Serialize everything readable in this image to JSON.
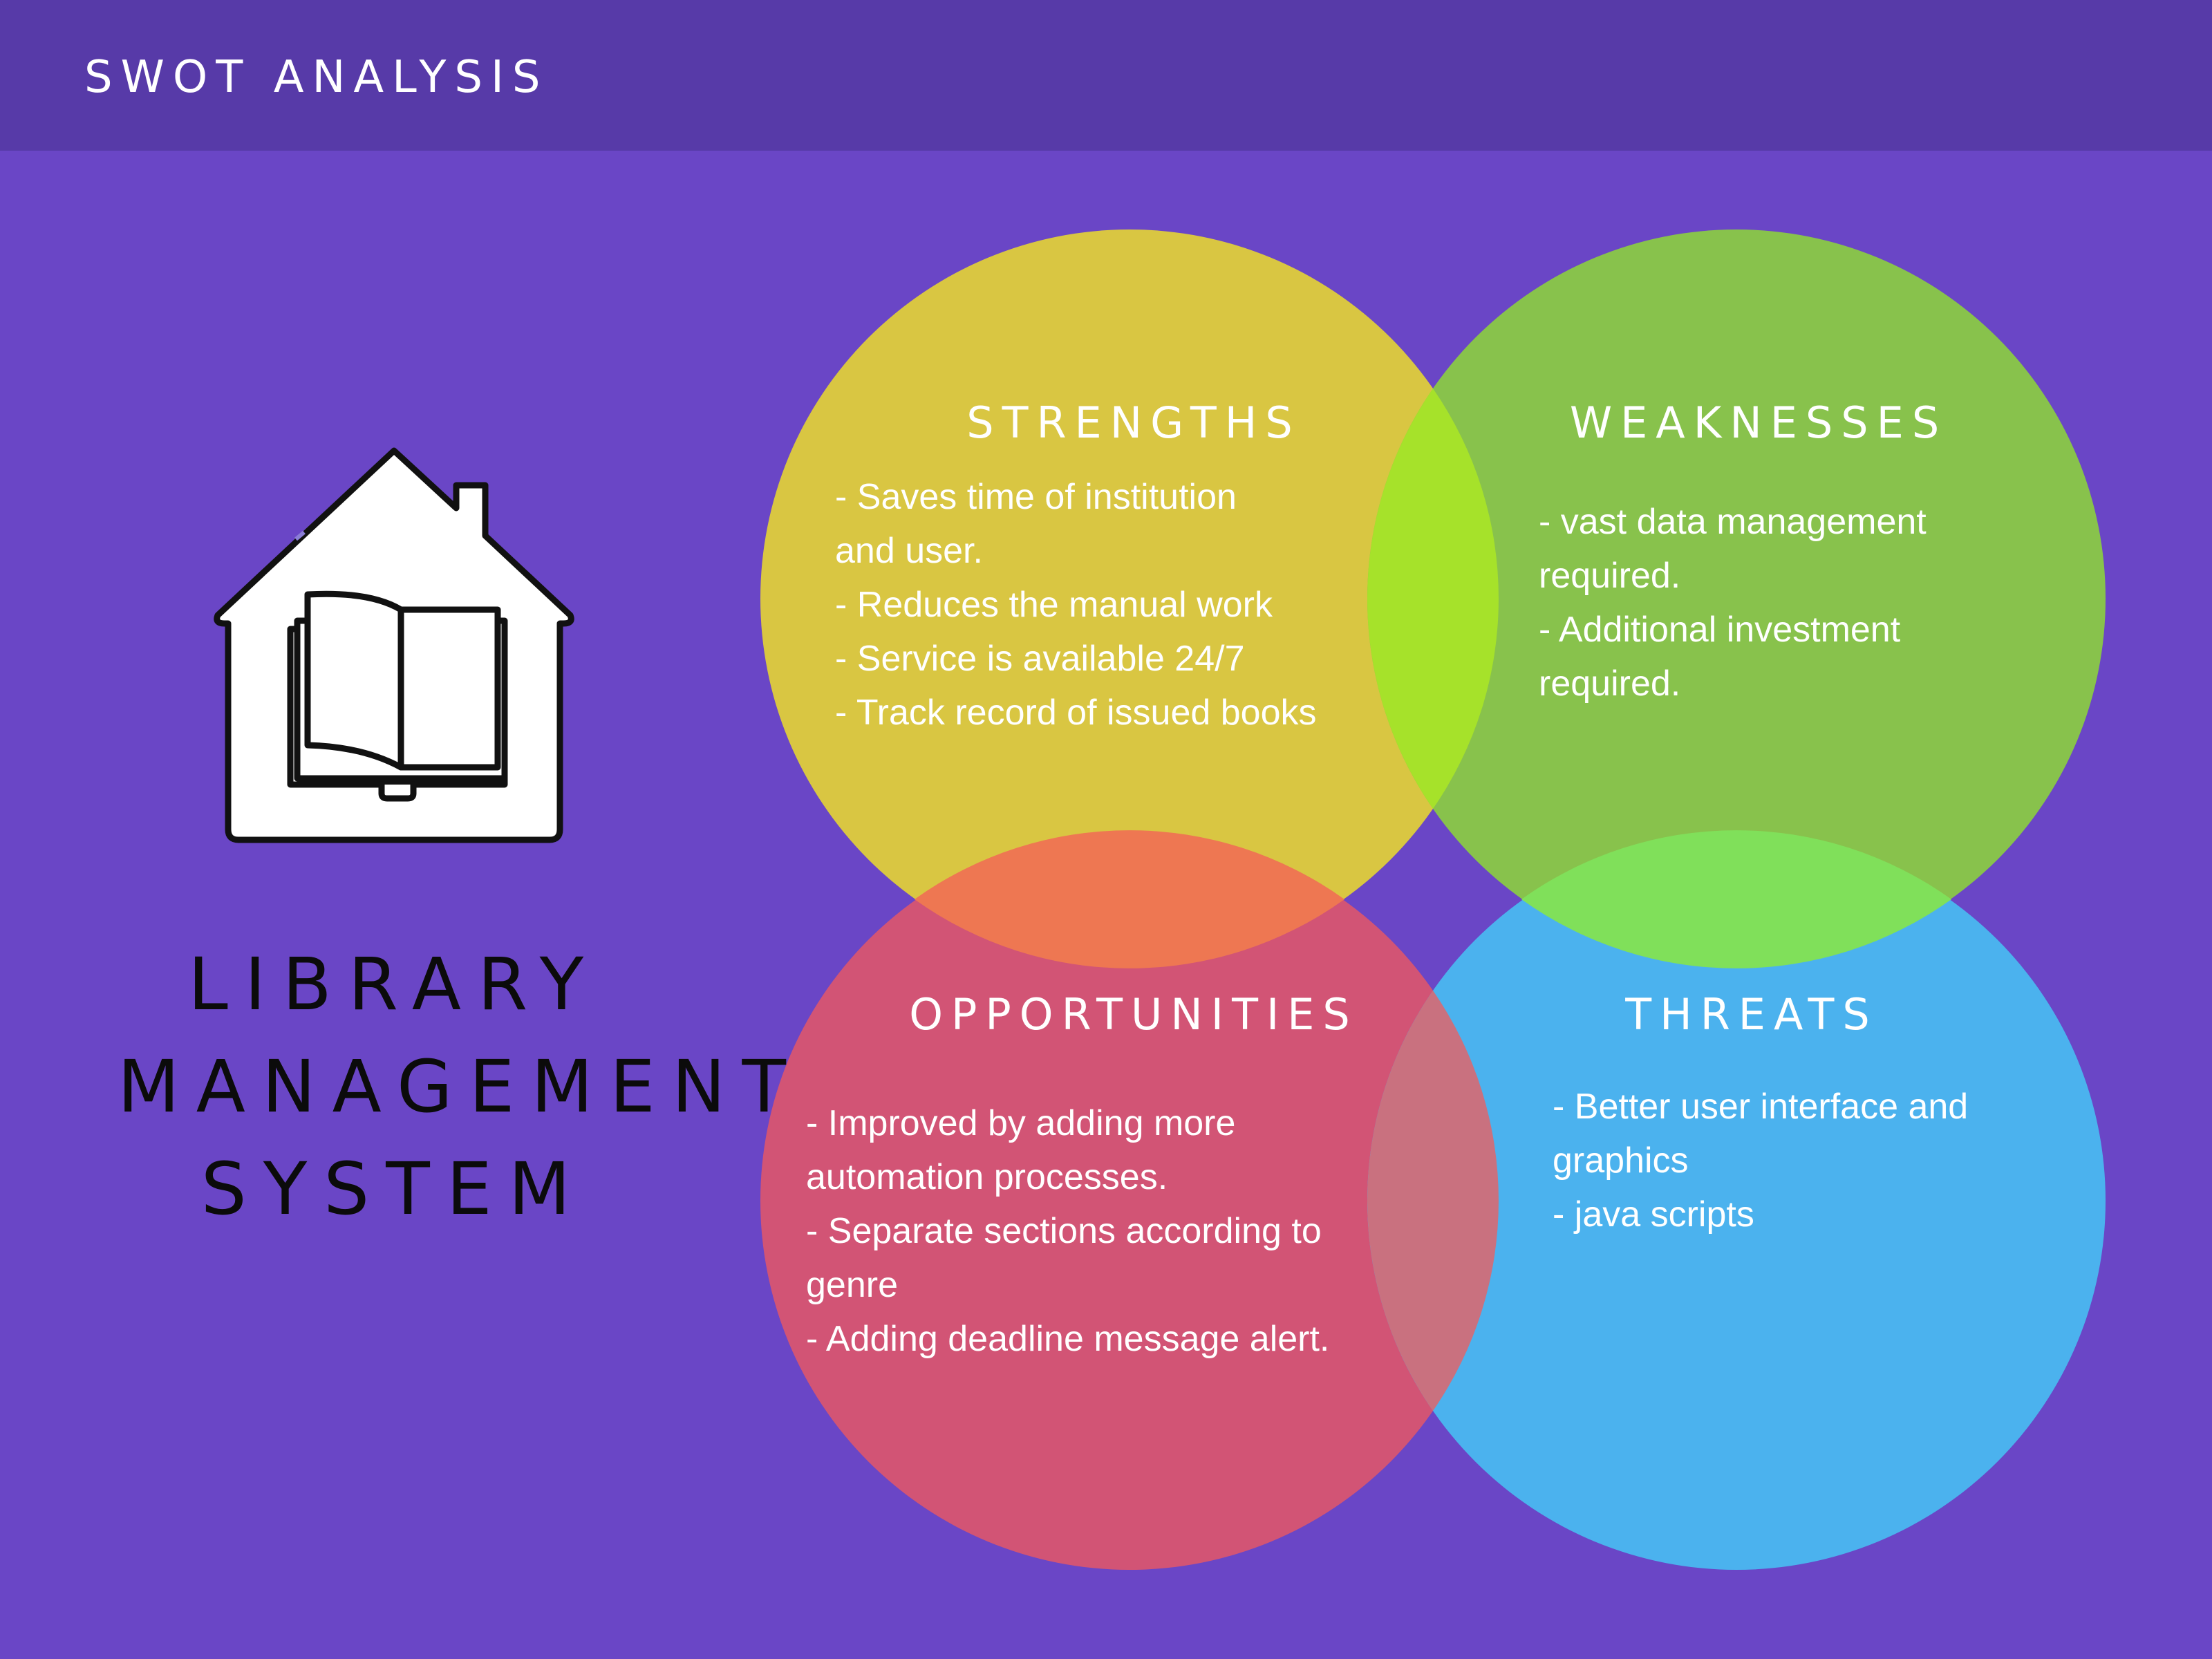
{
  "header": {
    "title": "SWOT ANALYSIS"
  },
  "system": {
    "title_lines": [
      "LIBRARY",
      "MANAGEMENT",
      "SYSTEM"
    ]
  },
  "colors": {
    "background": "#6a46c6",
    "header": "#573aa8",
    "strengths": "#d9c642",
    "weaknesses": "#88c24c",
    "opportunities": "#d25475",
    "threats": "#4bb2ee"
  },
  "quadrants": {
    "strengths": {
      "heading": "STRENGTHS",
      "lines": [
        "- Saves time of institution",
        "and user.",
        "- Reduces the manual work",
        "- Service is available 24/7",
        "- Track record of issued books"
      ]
    },
    "weaknesses": {
      "heading": "WEAKNESSES",
      "lines": [
        "- vast data management",
        "required.",
        "- Additional investment",
        "required."
      ]
    },
    "opportunities": {
      "heading": "OPPORTUNITIES",
      "lines": [
        "- Improved by adding more",
        "automation processes.",
        "- Separate sections according to",
        "genre",
        "- Adding deadline message alert."
      ]
    },
    "threats": {
      "heading": "THREATS",
      "lines": [
        "- Better user interface and",
        "graphics",
        "- java scripts"
      ]
    }
  },
  "icons": {
    "house": "house-book-icon"
  }
}
